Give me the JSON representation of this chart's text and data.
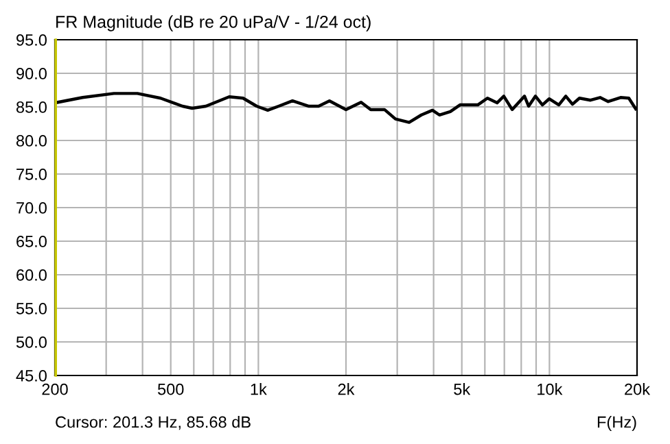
{
  "chart_data": {
    "type": "line",
    "title": "FR Magnitude (dB re 20 uPa/V - 1/24 oct)",
    "xlabel": "F(Hz)",
    "annotations": [
      "Cursor: 201.3 Hz, 85.68 dB"
    ],
    "log": "x",
    "grid": true,
    "legend": false,
    "marker": "none",
    "line_style": "solid",
    "xlim": [
      200,
      20000
    ],
    "ylim": [
      45,
      95
    ],
    "xticks": [
      200,
      {
        "value": 300,
        "label": null
      },
      {
        "value": 400,
        "label": null
      },
      500,
      {
        "value": 600,
        "label": null
      },
      {
        "value": 700,
        "label": null
      },
      {
        "value": 800,
        "label": null
      },
      {
        "value": 900,
        "label": null
      },
      {
        "value": 1000,
        "label": "1k"
      },
      {
        "value": 2000,
        "label": "2k"
      },
      {
        "value": 3000,
        "label": null
      },
      {
        "value": 4000,
        "label": null
      },
      {
        "value": 5000,
        "label": "5k"
      },
      {
        "value": 6000,
        "label": null
      },
      {
        "value": 7000,
        "label": null
      },
      {
        "value": 8000,
        "label": null
      },
      {
        "value": 9000,
        "label": null
      },
      {
        "value": 10000,
        "label": "10k"
      },
      {
        "value": 20000,
        "label": "20k"
      }
    ],
    "yticks": [
      {
        "value": 45,
        "label": "45.0"
      },
      {
        "value": 50,
        "label": "50.0"
      },
      {
        "value": 55,
        "label": "55.0"
      },
      {
        "value": 60,
        "label": "60.0"
      },
      {
        "value": 65,
        "label": "65.0"
      },
      {
        "value": 70,
        "label": "70.0"
      },
      {
        "value": 75,
        "label": "75.0"
      },
      {
        "value": 80,
        "label": "80.0"
      },
      {
        "value": 85,
        "label": "85.0"
      },
      {
        "value": 90,
        "label": "90.0"
      },
      {
        "value": 95,
        "label": "95.0"
      }
    ],
    "ref_lines": [
      {
        "axis": "x",
        "value": 201.3,
        "color": "#c8c800"
      }
    ],
    "series": [
      {
        "color": "#000000",
        "x": [
          200,
          249,
          319,
          384,
          461,
          549,
          592,
          660,
          794,
          886,
          987,
          1077,
          1174,
          1310,
          1492,
          1610,
          1755,
          2000,
          2254,
          2432,
          2712,
          2958,
          3296,
          3631,
          3964,
          4188,
          4566,
          4930,
          5675,
          6124,
          6608,
          6970,
          7446,
          8209,
          8482,
          8954,
          9460,
          9980,
          10770,
          11380,
          12000,
          12680,
          13840,
          14930,
          15920,
          17560,
          18740,
          19790
        ],
        "values": [
          85.6,
          86.4,
          87.0,
          87.0,
          86.3,
          85.1,
          84.8,
          85.1,
          86.5,
          86.3,
          85.1,
          84.5,
          85.1,
          85.9,
          85.1,
          85.1,
          85.9,
          84.6,
          85.7,
          84.6,
          84.6,
          83.2,
          82.7,
          83.8,
          84.5,
          83.8,
          84.3,
          85.3,
          85.3,
          86.3,
          85.6,
          86.6,
          84.6,
          86.6,
          85.1,
          86.6,
          85.3,
          86.2,
          85.3,
          86.6,
          85.4,
          86.3,
          86.0,
          86.4,
          85.8,
          86.4,
          86.3,
          84.7
        ]
      }
    ]
  }
}
